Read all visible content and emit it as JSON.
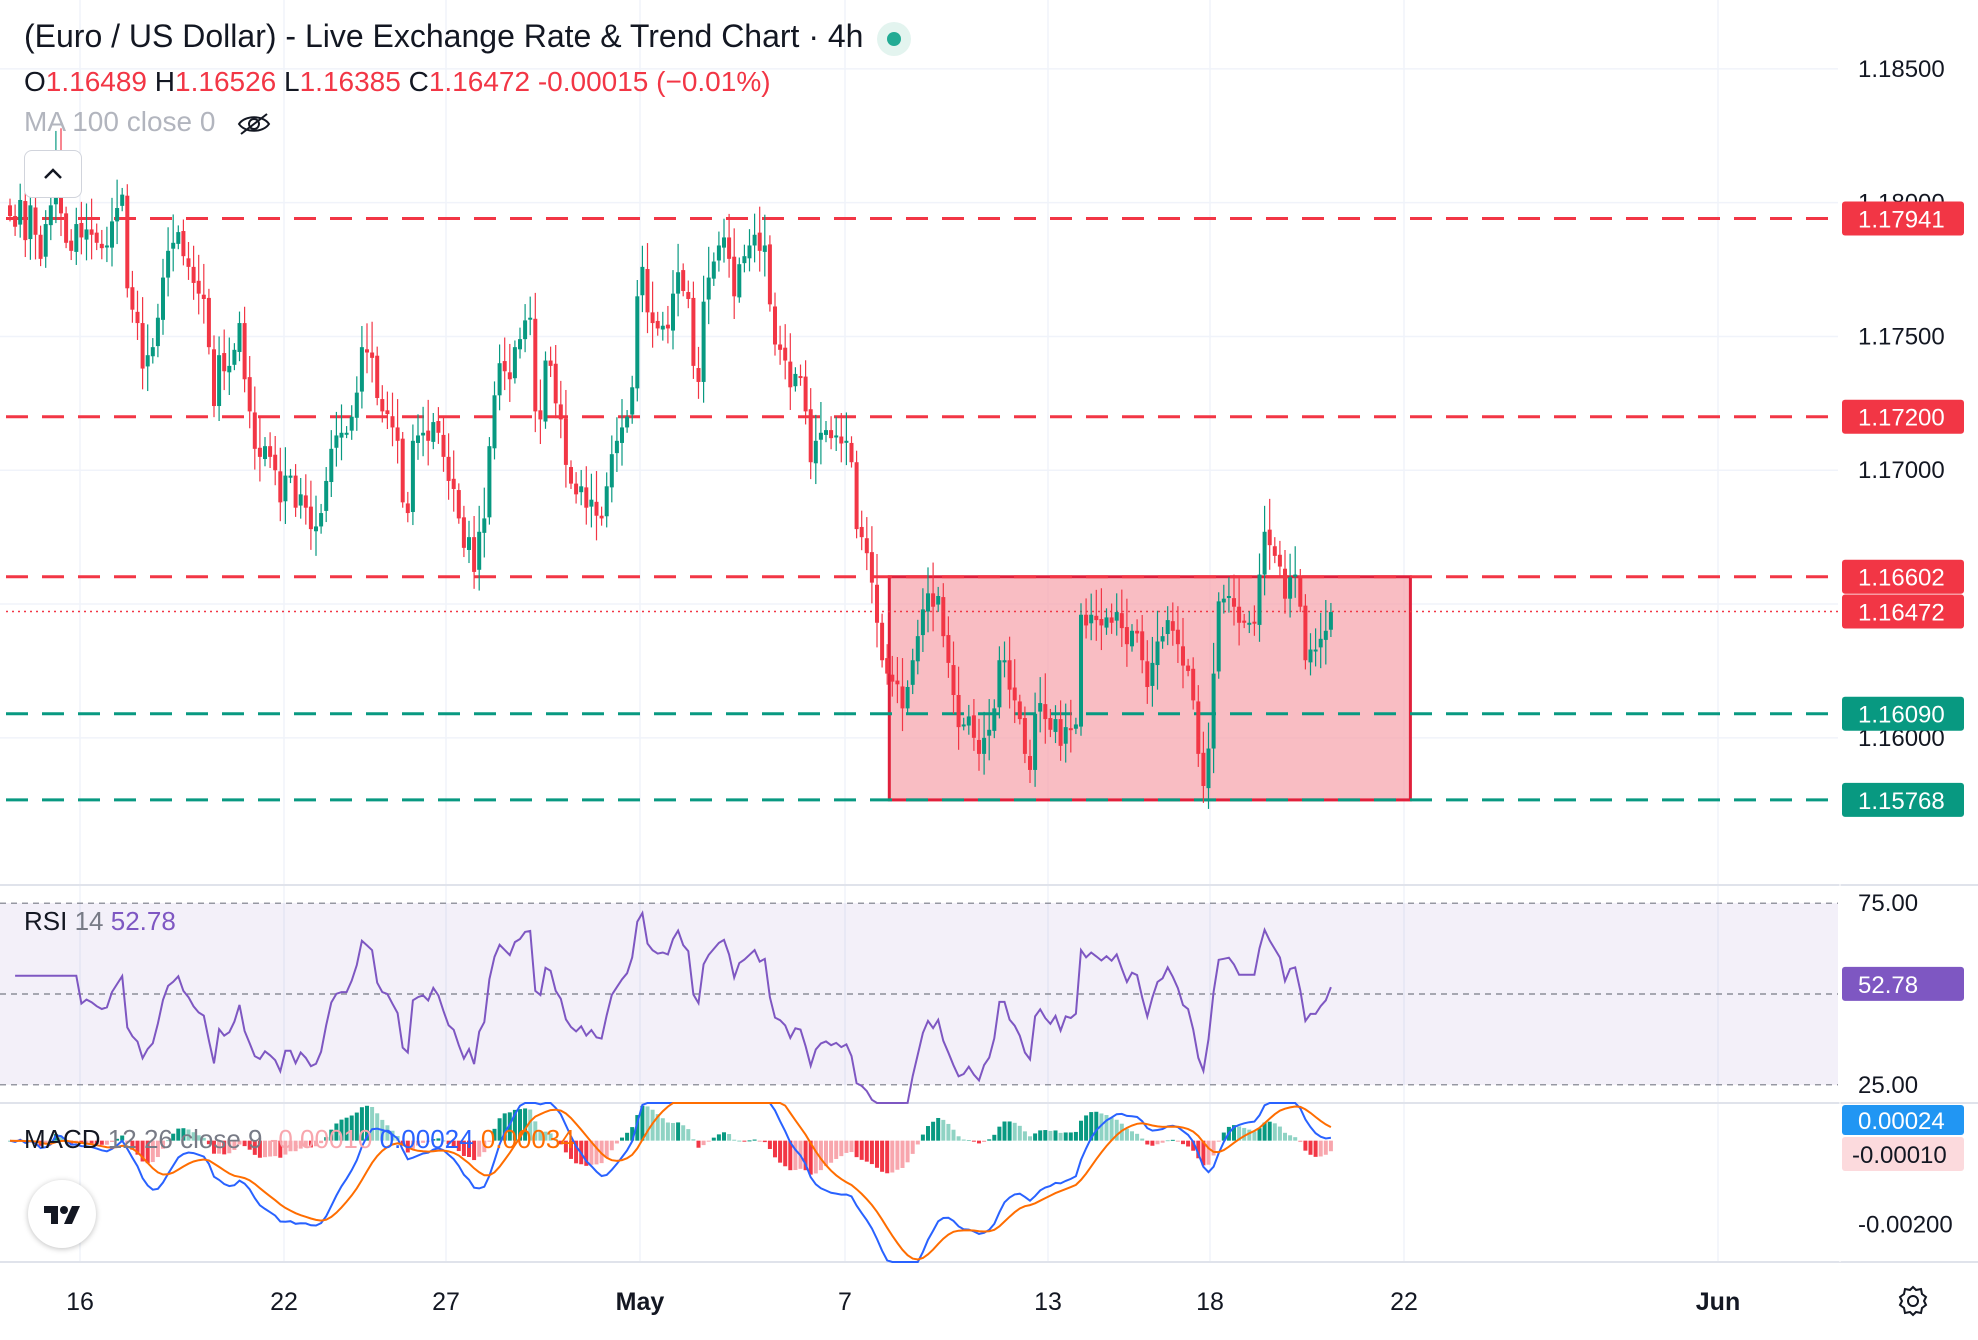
{
  "header": {
    "title": "(Euro / US Dollar) - Live Exchange Rate & Trend Chart · 4h",
    "status_icon": "market-open-dot",
    "ohlc": [
      {
        "key": "O",
        "value": "1.16489"
      },
      {
        "key": "H",
        "value": "1.16526"
      },
      {
        "key": "L",
        "value": "1.16385"
      },
      {
        "key": "C",
        "value": "1.16472"
      }
    ],
    "change": "-0.00015 (−0.01%)",
    "ma_label": "MA 100 close 0",
    "ma_icon": "eye-off-icon"
  },
  "colors": {
    "up": "#089981",
    "down": "#f23645",
    "up_light": "#8fd3c4",
    "down_light": "#f8a6ad",
    "resistance": "#f23645",
    "support": "#089981",
    "range_fill": "#f7a1a9",
    "rsi": "#7e57c2",
    "macd": "#2962ff",
    "signal": "#ff6d00",
    "axis_text": "#131722"
  },
  "chart_data": {
    "type": "candlestick",
    "title": "(Euro / US Dollar) - Live Exchange Rate & Trend Chart · 4h",
    "timeframe": "4h",
    "x_axis_labels": [
      "16",
      "22",
      "27",
      "May",
      "7",
      "13",
      "18",
      "22",
      "Jun"
    ],
    "y_axis_labels": [
      "1.18500",
      "1.18000",
      "1.17500",
      "1.17000",
      "1.16000"
    ],
    "ylim": [
      1.1545,
      1.1872
    ],
    "grid": true,
    "last_price": 1.16472,
    "horizontal_levels": [
      {
        "value": 1.17941,
        "label": "1.17941",
        "kind": "resistance"
      },
      {
        "value": 1.172,
        "label": "1.17200",
        "kind": "resistance"
      },
      {
        "value": 1.16602,
        "label": "1.16602",
        "kind": "resistance"
      },
      {
        "value": 1.1609,
        "label": "1.16090",
        "kind": "support"
      },
      {
        "value": 1.15768,
        "label": "1.15768",
        "kind": "support"
      }
    ],
    "range_box": {
      "top": 1.16602,
      "bottom": 1.15768,
      "start_bar": 173,
      "end_bar": 274
    },
    "closes": [
      1.1795,
      1.1791,
      1.1801,
      1.1786,
      1.1799,
      1.1788,
      1.1779,
      1.1792,
      1.1799,
      1.1818,
      1.1796,
      1.1785,
      1.1782,
      1.1792,
      1.1787,
      1.179,
      1.1788,
      1.1785,
      1.1783,
      1.1784,
      1.1793,
      1.1798,
      1.1803,
      1.1768,
      1.176,
      1.1755,
      1.1738,
      1.1743,
      1.1746,
      1.1757,
      1.1772,
      1.1782,
      1.1785,
      1.1789,
      1.178,
      1.1776,
      1.177,
      1.1766,
      1.1764,
      1.1746,
      1.1724,
      1.1743,
      1.1737,
      1.1739,
      1.1745,
      1.1755,
      1.1734,
      1.1722,
      1.1708,
      1.1705,
      1.1709,
      1.1705,
      1.17,
      1.1688,
      1.1698,
      1.1698,
      1.1686,
      1.1691,
      1.1686,
      1.1678,
      1.1679,
      1.1684,
      1.1696,
      1.1708,
      1.1713,
      1.1714,
      1.1714,
      1.172,
      1.1729,
      1.1746,
      1.1744,
      1.1742,
      1.1727,
      1.1722,
      1.1721,
      1.1716,
      1.1711,
      1.1688,
      1.1684,
      1.1711,
      1.1713,
      1.1714,
      1.1711,
      1.1718,
      1.1714,
      1.1705,
      1.1696,
      1.1693,
      1.1682,
      1.1671,
      1.1675,
      1.1662,
      1.1677,
      1.1682,
      1.1709,
      1.1728,
      1.174,
      1.1737,
      1.1734,
      1.1746,
      1.1749,
      1.1756,
      1.1757,
      1.1722,
      1.1719,
      1.1741,
      1.1739,
      1.1725,
      1.1719,
      1.1702,
      1.1695,
      1.1691,
      1.1694,
      1.1686,
      1.1689,
      1.1683,
      1.1682,
      1.1694,
      1.1706,
      1.1711,
      1.1716,
      1.172,
      1.1731,
      1.1765,
      1.1776,
      1.1759,
      1.1755,
      1.1753,
      1.1754,
      1.1753,
      1.1766,
      1.1774,
      1.1767,
      1.1764,
      1.1739,
      1.1733,
      1.1763,
      1.1772,
      1.1778,
      1.1784,
      1.1787,
      1.1779,
      1.1765,
      1.1777,
      1.178,
      1.1784,
      1.1788,
      1.1782,
      1.1784,
      1.1762,
      1.1747,
      1.1745,
      1.1741,
      1.1731,
      1.1736,
      1.1735,
      1.1722,
      1.1703,
      1.1711,
      1.1714,
      1.1715,
      1.1712,
      1.1713,
      1.171,
      1.1711,
      1.1703,
      1.1678,
      1.1675,
      1.1669,
      1.1658,
      1.1643,
      1.1629,
      1.1624,
      1.1621,
      1.162,
      1.1611,
      1.1619,
      1.1629,
      1.1638,
      1.1648,
      1.1654,
      1.1649,
      1.1653,
      1.1638,
      1.1628,
      1.1616,
      1.1604,
      1.1605,
      1.1608,
      1.16,
      1.1594,
      1.16,
      1.1603,
      1.1611,
      1.1629,
      1.1629,
      1.1618,
      1.1614,
      1.1607,
      1.1594,
      1.1588,
      1.1609,
      1.1613,
      1.1607,
      1.1603,
      1.1607,
      1.1597,
      1.1604,
      1.1603,
      1.1605,
      1.1646,
      1.1642,
      1.1646,
      1.1644,
      1.1642,
      1.1645,
      1.1643,
      1.1647,
      1.1641,
      1.1635,
      1.164,
      1.1639,
      1.1629,
      1.1619,
      1.1628,
      1.1636,
      1.1638,
      1.1644,
      1.164,
      1.1635,
      1.1627,
      1.1625,
      1.1614,
      1.1594,
      1.1582,
      1.1596,
      1.1624,
      1.1651,
      1.1652,
      1.1653,
      1.1649,
      1.1643,
      1.1643,
      1.1643,
      1.1643,
      1.1661,
      1.1677,
      1.1672,
      1.1668,
      1.1664,
      1.1652,
      1.166,
      1.1661,
      1.1649,
      1.1629,
      1.1633,
      1.1633,
      1.1637,
      1.164,
      1.1647
    ],
    "rsi": {
      "label": "RSI",
      "period": 14,
      "value": "52.78",
      "levels": [
        75,
        50,
        25
      ],
      "level_labels": [
        "75.00",
        "25.00"
      ],
      "ylim": [
        20,
        80
      ]
    },
    "macd": {
      "label": "MACD",
      "params": "12 26 close 9",
      "histogram_value": "-0.00010",
      "macd_value": "0.00024",
      "signal_value": "0.00034",
      "axis_badges": [
        "0.00024",
        "-0.00010"
      ],
      "y_axis_labels": [
        "-0.00200"
      ],
      "ylim": [
        -0.0029,
        0.0009
      ]
    }
  },
  "toolbar": {
    "collapse_icon": "chevron-up-icon",
    "logo_icon": "tradingview-logo-icon",
    "settings_icon": "gear-icon"
  }
}
